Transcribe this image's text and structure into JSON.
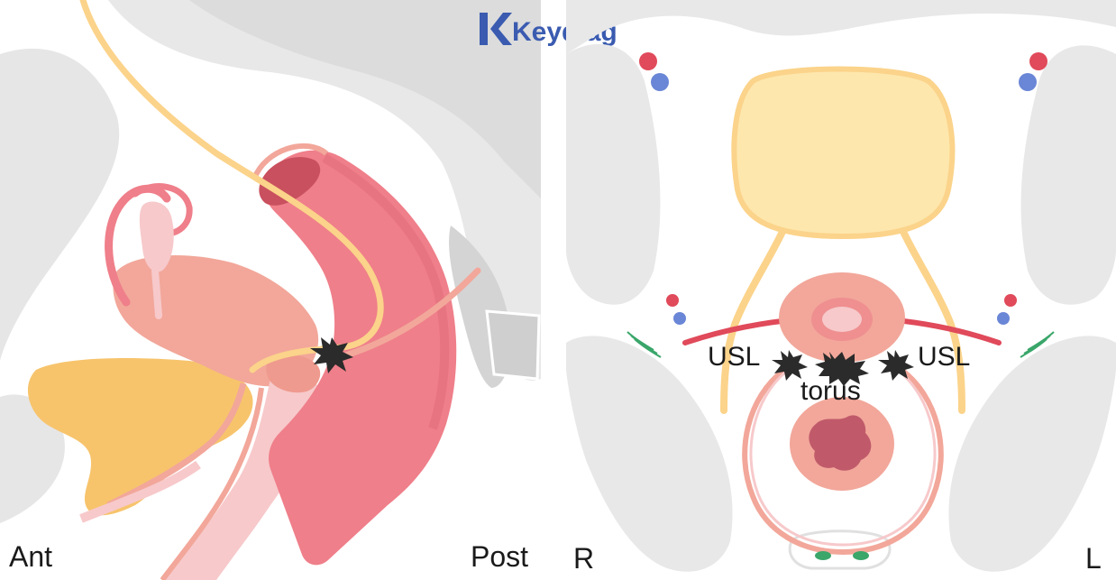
{
  "brand": {
    "name": "Keydiag",
    "color": "#3a5bb0"
  },
  "sagittal_view": {
    "labels": {
      "anterior": "Ant",
      "posterior": "Post"
    }
  },
  "axial_view": {
    "labels": {
      "right": "R",
      "left": "L",
      "usl_right": "USL",
      "usl_left": "USL",
      "torus": "torus"
    }
  },
  "icons": {
    "endometriosis_lesion": "starburst-lesion-icon",
    "brand_logo": "keydiag-k-logo"
  },
  "colors": {
    "bone": "#e6e6e6",
    "bone_dark": "#cfcfcf",
    "rectum": "#ef7f8a",
    "rectum_inner": "#d8606e",
    "uterus": "#f2a79a",
    "bladder": "#f7c46c",
    "ureter": "#fbd38a",
    "vagina": "#f7c9cb",
    "lesion": "#2b2b2b",
    "artery": "#e04a5a",
    "vein": "#6a86d6",
    "ligament": "#e04a5a",
    "nerve": "#3aa66a"
  }
}
